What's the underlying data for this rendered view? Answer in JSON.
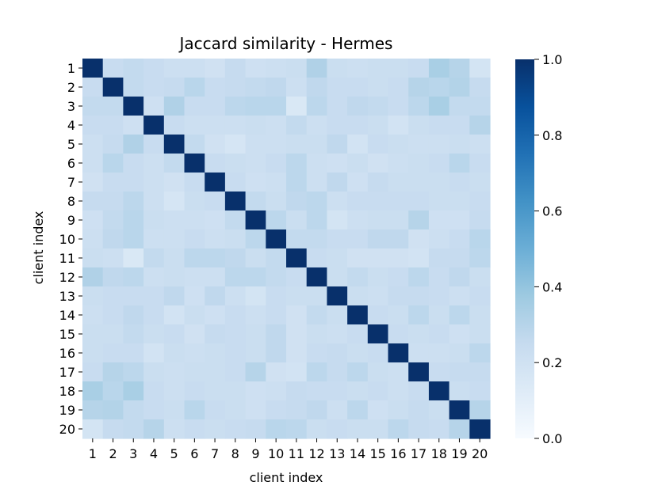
{
  "chart_data": {
    "type": "heatmap",
    "title": "Jaccard similarity - Hermes",
    "xlabel": "client index",
    "ylabel": "client index",
    "x_categories": [
      "1",
      "2",
      "3",
      "4",
      "5",
      "6",
      "7",
      "8",
      "9",
      "10",
      "11",
      "12",
      "13",
      "14",
      "15",
      "16",
      "17",
      "18",
      "19",
      "20"
    ],
    "y_categories": [
      "1",
      "2",
      "3",
      "4",
      "5",
      "6",
      "7",
      "8",
      "9",
      "10",
      "11",
      "12",
      "13",
      "14",
      "15",
      "16",
      "17",
      "18",
      "19",
      "20"
    ],
    "colorbar": {
      "range": [
        0.0,
        1.0
      ],
      "ticks": [
        "0.0",
        "0.2",
        "0.4",
        "0.6",
        "0.8",
        "1.0"
      ],
      "colormap": "Blues"
    },
    "values": [
      [
        1.0,
        0.24,
        0.26,
        0.24,
        0.22,
        0.22,
        0.2,
        0.25,
        0.21,
        0.22,
        0.23,
        0.32,
        0.23,
        0.22,
        0.23,
        0.23,
        0.24,
        0.34,
        0.3,
        0.18
      ],
      [
        0.24,
        1.0,
        0.26,
        0.24,
        0.25,
        0.29,
        0.24,
        0.25,
        0.26,
        0.27,
        0.22,
        0.27,
        0.24,
        0.24,
        0.23,
        0.24,
        0.3,
        0.29,
        0.31,
        0.25
      ],
      [
        0.26,
        0.26,
        1.0,
        0.21,
        0.32,
        0.24,
        0.24,
        0.28,
        0.29,
        0.29,
        0.15,
        0.28,
        0.24,
        0.27,
        0.26,
        0.24,
        0.28,
        0.34,
        0.26,
        0.26
      ],
      [
        0.24,
        0.24,
        0.21,
        1.0,
        0.24,
        0.22,
        0.22,
        0.22,
        0.23,
        0.22,
        0.26,
        0.22,
        0.24,
        0.24,
        0.23,
        0.19,
        0.23,
        0.24,
        0.24,
        0.3
      ],
      [
        0.22,
        0.25,
        0.32,
        0.24,
        1.0,
        0.26,
        0.2,
        0.17,
        0.22,
        0.22,
        0.23,
        0.23,
        0.27,
        0.19,
        0.24,
        0.23,
        0.22,
        0.22,
        0.23,
        0.22
      ],
      [
        0.22,
        0.29,
        0.24,
        0.22,
        0.26,
        1.0,
        0.24,
        0.23,
        0.22,
        0.24,
        0.28,
        0.22,
        0.21,
        0.23,
        0.2,
        0.22,
        0.23,
        0.24,
        0.29,
        0.24
      ],
      [
        0.2,
        0.24,
        0.24,
        0.22,
        0.2,
        0.24,
        1.0,
        0.24,
        0.21,
        0.22,
        0.28,
        0.22,
        0.27,
        0.21,
        0.25,
        0.23,
        0.23,
        0.23,
        0.24,
        0.23
      ],
      [
        0.25,
        0.25,
        0.28,
        0.22,
        0.17,
        0.23,
        0.24,
        1.0,
        0.26,
        0.23,
        0.27,
        0.28,
        0.22,
        0.24,
        0.24,
        0.24,
        0.24,
        0.23,
        0.23,
        0.24
      ],
      [
        0.21,
        0.26,
        0.29,
        0.23,
        0.22,
        0.22,
        0.21,
        0.26,
        1.0,
        0.28,
        0.23,
        0.28,
        0.18,
        0.22,
        0.23,
        0.23,
        0.3,
        0.21,
        0.21,
        0.25
      ],
      [
        0.22,
        0.27,
        0.29,
        0.22,
        0.22,
        0.24,
        0.22,
        0.23,
        0.28,
        1.0,
        0.26,
        0.26,
        0.24,
        0.24,
        0.27,
        0.27,
        0.2,
        0.22,
        0.24,
        0.29
      ],
      [
        0.23,
        0.22,
        0.15,
        0.26,
        0.23,
        0.28,
        0.28,
        0.27,
        0.23,
        0.26,
        1.0,
        0.24,
        0.23,
        0.2,
        0.2,
        0.2,
        0.19,
        0.25,
        0.25,
        0.28
      ],
      [
        0.32,
        0.27,
        0.28,
        0.22,
        0.23,
        0.22,
        0.22,
        0.28,
        0.28,
        0.26,
        0.24,
        1.0,
        0.23,
        0.26,
        0.23,
        0.24,
        0.28,
        0.24,
        0.27,
        0.23
      ],
      [
        0.23,
        0.24,
        0.24,
        0.24,
        0.27,
        0.21,
        0.27,
        0.22,
        0.18,
        0.24,
        0.23,
        0.23,
        1.0,
        0.23,
        0.22,
        0.25,
        0.25,
        0.24,
        0.22,
        0.24
      ],
      [
        0.22,
        0.24,
        0.27,
        0.24,
        0.19,
        0.23,
        0.21,
        0.24,
        0.22,
        0.24,
        0.2,
        0.26,
        0.23,
        1.0,
        0.24,
        0.23,
        0.28,
        0.23,
        0.28,
        0.23
      ],
      [
        0.23,
        0.23,
        0.26,
        0.23,
        0.24,
        0.2,
        0.25,
        0.24,
        0.23,
        0.27,
        0.2,
        0.23,
        0.22,
        0.24,
        1.0,
        0.24,
        0.23,
        0.24,
        0.21,
        0.23
      ],
      [
        0.23,
        0.24,
        0.24,
        0.19,
        0.23,
        0.22,
        0.23,
        0.24,
        0.23,
        0.27,
        0.2,
        0.24,
        0.25,
        0.23,
        0.24,
        1.0,
        0.22,
        0.22,
        0.23,
        0.28
      ],
      [
        0.24,
        0.3,
        0.28,
        0.23,
        0.22,
        0.23,
        0.23,
        0.24,
        0.3,
        0.2,
        0.19,
        0.28,
        0.25,
        0.28,
        0.23,
        0.22,
        1.0,
        0.24,
        0.25,
        0.25
      ],
      [
        0.34,
        0.29,
        0.34,
        0.24,
        0.22,
        0.24,
        0.23,
        0.23,
        0.21,
        0.22,
        0.25,
        0.24,
        0.24,
        0.23,
        0.24,
        0.22,
        0.24,
        1.0,
        0.23,
        0.24
      ],
      [
        0.3,
        0.31,
        0.26,
        0.24,
        0.23,
        0.29,
        0.24,
        0.23,
        0.21,
        0.24,
        0.25,
        0.27,
        0.22,
        0.28,
        0.21,
        0.23,
        0.25,
        0.23,
        1.0,
        0.3
      ],
      [
        0.18,
        0.25,
        0.26,
        0.3,
        0.22,
        0.24,
        0.23,
        0.24,
        0.25,
        0.29,
        0.28,
        0.23,
        0.24,
        0.23,
        0.23,
        0.28,
        0.25,
        0.24,
        0.3,
        1.0
      ]
    ]
  }
}
